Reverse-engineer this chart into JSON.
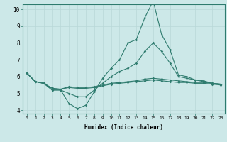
{
  "xlabel": "Humidex (Indice chaleur)",
  "x": [
    0,
    1,
    2,
    3,
    4,
    5,
    6,
    7,
    8,
    9,
    10,
    11,
    12,
    13,
    14,
    15,
    16,
    17,
    18,
    19,
    20,
    21,
    22,
    23
  ],
  "line1": [
    6.2,
    5.7,
    5.6,
    5.2,
    5.2,
    4.4,
    4.1,
    4.3,
    5.1,
    5.9,
    6.5,
    7.0,
    8.0,
    8.2,
    9.5,
    10.5,
    8.5,
    7.6,
    6.1,
    6.0,
    5.8,
    5.7,
    5.6,
    5.55
  ],
  "line2": [
    6.2,
    5.7,
    5.6,
    5.2,
    5.2,
    5.0,
    4.8,
    4.8,
    5.2,
    5.6,
    6.0,
    6.3,
    6.5,
    6.8,
    7.5,
    8.0,
    7.5,
    6.8,
    6.0,
    5.9,
    5.8,
    5.75,
    5.6,
    5.55
  ],
  "line3": [
    6.2,
    5.7,
    5.6,
    5.3,
    5.25,
    5.4,
    5.35,
    5.35,
    5.4,
    5.5,
    5.6,
    5.65,
    5.7,
    5.75,
    5.85,
    5.9,
    5.85,
    5.8,
    5.75,
    5.7,
    5.65,
    5.65,
    5.6,
    5.55
  ],
  "line4": [
    6.2,
    5.7,
    5.6,
    5.3,
    5.25,
    5.35,
    5.3,
    5.3,
    5.35,
    5.45,
    5.55,
    5.6,
    5.65,
    5.7,
    5.75,
    5.8,
    5.75,
    5.7,
    5.65,
    5.65,
    5.6,
    5.6,
    5.55,
    5.5
  ],
  "line_color": "#2e7b6e",
  "bg_color": "#cce8e8",
  "grid_color": "#b8d8d8",
  "ylim": [
    4,
    10
  ],
  "yticks": [
    4,
    5,
    6,
    7,
    8,
    9,
    10
  ],
  "xticks": [
    0,
    1,
    2,
    3,
    4,
    5,
    6,
    7,
    8,
    9,
    10,
    11,
    12,
    13,
    14,
    15,
    16,
    17,
    18,
    19,
    20,
    21,
    22,
    23
  ]
}
